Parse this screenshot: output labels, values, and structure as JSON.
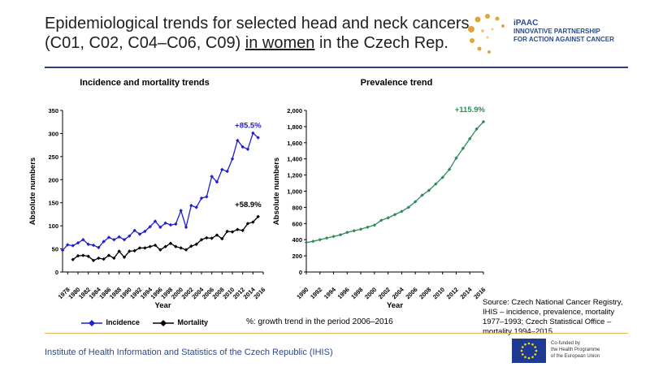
{
  "header": {
    "title_line1": "Epidemiological trends for selected head and neck cancers",
    "title_line2_pre": "(C01, C02, C04–C06, C09) ",
    "title_line2_underline": "in women",
    "title_line2_post": " in the Czech Rep."
  },
  "logo": {
    "name": "iPAAC",
    "line1": "INNOVATIVE PARTNERSHIP",
    "line2": "FOR ACTION AGAINST CANCER"
  },
  "legend": {
    "incidence": "Incidence",
    "mortality": "Mortality",
    "note": "%: growth trend in the period 2006–2016"
  },
  "source": "Source: Czech National Cancer Registry, IHIS – incidence, prevalence, mortality 1977–1993; Czech Statistical Office – mortality 1994–2015",
  "footer": "Institute of Health Information and Statistics of the Czech Republic (IHIS)",
  "eu": {
    "line1": "Co-funded by",
    "line2": "the Health Programme",
    "line3": "of the European Union"
  },
  "chart_data": [
    {
      "type": "line",
      "title": "Incidence and mortality trends",
      "xlabel": "Year",
      "ylabel": "Absolute numbers",
      "ylim": [
        0,
        350
      ],
      "yticks": [
        0,
        50,
        100,
        150,
        200,
        250,
        300,
        350
      ],
      "xtick_labels": [
        "1978",
        "1980",
        "1982",
        "1984",
        "1986",
        "1988",
        "1990",
        "1992",
        "1994",
        "1996",
        "1998",
        "2000",
        "2002",
        "2004",
        "2006",
        "2008",
        "2010",
        "2012",
        "2014",
        "2016"
      ],
      "x": [
        1977,
        1978,
        1979,
        1980,
        1981,
        1982,
        1983,
        1984,
        1985,
        1986,
        1987,
        1988,
        1989,
        1990,
        1991,
        1992,
        1993,
        1994,
        1995,
        1996,
        1997,
        1998,
        1999,
        2000,
        2001,
        2002,
        2003,
        2004,
        2005,
        2006,
        2007,
        2008,
        2009,
        2010,
        2011,
        2012,
        2013,
        2014,
        2015,
        2016
      ],
      "series": [
        {
          "name": "Incidence",
          "color": "#1f1fcc",
          "values": [
            47,
            59,
            57,
            63,
            70,
            60,
            58,
            53,
            66,
            75,
            70,
            76,
            70,
            78,
            90,
            82,
            88,
            98,
            110,
            97,
            106,
            102,
            104,
            133,
            97,
            144,
            140,
            160,
            163,
            207,
            195,
            222,
            218,
            245,
            285,
            271,
            266,
            301,
            291,
            null
          ],
          "annotation": "+85.5%",
          "annotation_color": "#1f1fcc"
        },
        {
          "name": "Mortality",
          "color": "#000000",
          "values": [
            null,
            null,
            27,
            35,
            36,
            34,
            25,
            30,
            28,
            36,
            30,
            45,
            32,
            45,
            46,
            52,
            52,
            55,
            58,
            48,
            55,
            62,
            55,
            52,
            48,
            56,
            60,
            70,
            74,
            73,
            80,
            72,
            88,
            87,
            92,
            90,
            105,
            108,
            120,
            null
          ],
          "annotation": "+58.9%",
          "annotation_color": "#000000"
        }
      ]
    },
    {
      "type": "line",
      "title": "Prevalence trend",
      "xlabel": "Year",
      "ylabel": "Absolute numbers",
      "ylim": [
        0,
        2000
      ],
      "yticks": [
        0,
        200,
        400,
        600,
        800,
        1000,
        1200,
        1400,
        1600,
        1800,
        2000
      ],
      "ytick_labels": [
        "0",
        "200",
        "400",
        "600",
        "800",
        "1,000",
        "1,200",
        "1,400",
        "1,600",
        "1,800",
        "2,000"
      ],
      "xtick_labels": [
        "1990",
        "1992",
        "1994",
        "1996",
        "1998",
        "2000",
        "2002",
        "2004",
        "2006",
        "2008",
        "2010",
        "2012",
        "2014",
        "2016"
      ],
      "x": [
        1990,
        1991,
        1992,
        1993,
        1994,
        1995,
        1996,
        1997,
        1998,
        1999,
        2000,
        2001,
        2002,
        2003,
        2004,
        2005,
        2006,
        2007,
        2008,
        2009,
        2010,
        2011,
        2012,
        2013,
        2014,
        2015,
        2016
      ],
      "series": [
        {
          "name": "Prevalence",
          "color": "#2e8b57",
          "values": [
            365,
            380,
            400,
            420,
            440,
            460,
            490,
            510,
            530,
            555,
            580,
            640,
            670,
            710,
            750,
            800,
            870,
            950,
            1010,
            1090,
            1170,
            1270,
            1410,
            1530,
            1650,
            1770,
            1860
          ],
          "annotation": "+115.9%",
          "annotation_color": "#2e8b57"
        }
      ]
    }
  ]
}
